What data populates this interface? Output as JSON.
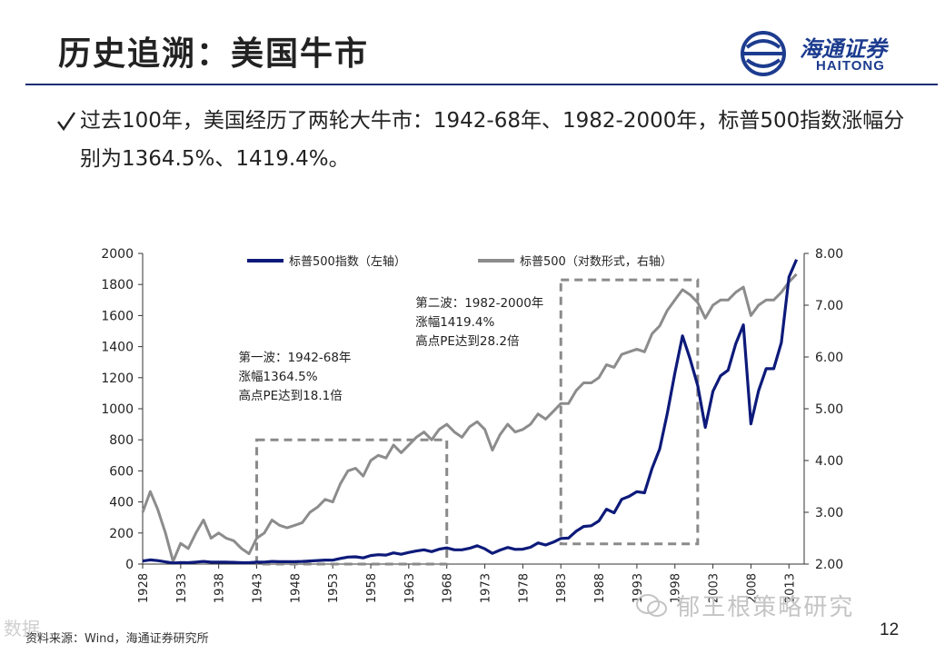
{
  "slide": {
    "title": "历史追溯：美国牛市",
    "bullet": "过去100年，美国经历了两轮大牛市：1942-68年、1982-2000年，标普500指数涨幅分别为1364.5%、1419.4%。",
    "source": "资料来源：Wind，海通证券研究所",
    "page_number": "12",
    "watermark": "郁王根策略研究",
    "watermark2": "数据",
    "logo_cn": "海通证券",
    "logo_en": "HAITONG"
  },
  "icons": {
    "bullet": "check-icon",
    "logo": "haitong-logo-icon",
    "watermark": "wechat-icon"
  },
  "colors": {
    "index_line": "#0d1a7a",
    "log_line": "#8c8c8c",
    "box": "#8a8a8a",
    "accent": "#1b2f75"
  },
  "chart_data": {
    "type": "line",
    "x_unit": "year",
    "xlim": [
      1928,
      2015
    ],
    "x_ticks": [
      "1928",
      "1933",
      "1938",
      "1943",
      "1948",
      "1953",
      "1958",
      "1963",
      "1968",
      "1973",
      "1978",
      "1983",
      "1988",
      "1993",
      "1998",
      "2003",
      "2008",
      "2013"
    ],
    "y_left": {
      "ylim": [
        0,
        2000
      ],
      "ticks": [
        "0",
        "200",
        "400",
        "600",
        "800",
        "1000",
        "1200",
        "1400",
        "1600",
        "1800",
        "2000"
      ]
    },
    "y_right": {
      "ylim": [
        2,
        8
      ],
      "ticks": [
        "2.00",
        "3.00",
        "4.00",
        "5.00",
        "6.00",
        "7.00",
        "8.00"
      ]
    },
    "grid": false,
    "legend_position": "top",
    "series": [
      {
        "name": "标普500指数（左轴）",
        "axis": "left",
        "points": [
          [
            1928,
            20
          ],
          [
            1929,
            27
          ],
          [
            1930,
            22
          ],
          [
            1931,
            14
          ],
          [
            1932,
            7
          ],
          [
            1933,
            10
          ],
          [
            1934,
            9
          ],
          [
            1935,
            13
          ],
          [
            1936,
            17
          ],
          [
            1937,
            12
          ],
          [
            1938,
            13
          ],
          [
            1939,
            12
          ],
          [
            1940,
            11
          ],
          [
            1941,
            9
          ],
          [
            1942,
            9
          ],
          [
            1943,
            12
          ],
          [
            1944,
            13
          ],
          [
            1945,
            17
          ],
          [
            1946,
            15
          ],
          [
            1947,
            15
          ],
          [
            1948,
            15
          ],
          [
            1949,
            17
          ],
          [
            1950,
            20
          ],
          [
            1951,
            23
          ],
          [
            1952,
            26
          ],
          [
            1953,
            25
          ],
          [
            1954,
            36
          ],
          [
            1955,
            45
          ],
          [
            1956,
            47
          ],
          [
            1957,
            40
          ],
          [
            1958,
            55
          ],
          [
            1959,
            60
          ],
          [
            1960,
            58
          ],
          [
            1961,
            72
          ],
          [
            1962,
            63
          ],
          [
            1963,
            75
          ],
          [
            1964,
            84
          ],
          [
            1965,
            92
          ],
          [
            1966,
            80
          ],
          [
            1967,
            96
          ],
          [
            1968,
            104
          ],
          [
            1969,
            92
          ],
          [
            1970,
            92
          ],
          [
            1971,
            102
          ],
          [
            1972,
            118
          ],
          [
            1973,
            98
          ],
          [
            1974,
            69
          ],
          [
            1975,
            90
          ],
          [
            1976,
            107
          ],
          [
            1977,
            95
          ],
          [
            1978,
            96
          ],
          [
            1979,
            108
          ],
          [
            1980,
            136
          ],
          [
            1981,
            123
          ],
          [
            1982,
            141
          ],
          [
            1983,
            165
          ],
          [
            1984,
            167
          ],
          [
            1985,
            211
          ],
          [
            1986,
            242
          ],
          [
            1987,
            247
          ],
          [
            1988,
            278
          ],
          [
            1989,
            353
          ],
          [
            1990,
            330
          ],
          [
            1991,
            417
          ],
          [
            1992,
            436
          ],
          [
            1993,
            466
          ],
          [
            1994,
            459
          ],
          [
            1995,
            616
          ],
          [
            1996,
            741
          ],
          [
            1997,
            970
          ],
          [
            1998,
            1229
          ],
          [
            1999,
            1469
          ],
          [
            2000,
            1320
          ],
          [
            2001,
            1148
          ],
          [
            2002,
            880
          ],
          [
            2003,
            1112
          ],
          [
            2004,
            1212
          ],
          [
            2005,
            1248
          ],
          [
            2006,
            1418
          ],
          [
            2007,
            1540
          ],
          [
            2008,
            903
          ],
          [
            2009,
            1115
          ],
          [
            2010,
            1258
          ],
          [
            2011,
            1258
          ],
          [
            2012,
            1426
          ],
          [
            2013,
            1848
          ],
          [
            2014,
            1960
          ]
        ]
      },
      {
        "name": "标普500（对数形式，右轴）",
        "axis": "right",
        "points": [
          [
            1928,
            3.0
          ],
          [
            1929,
            3.4
          ],
          [
            1930,
            3.05
          ],
          [
            1931,
            2.6
          ],
          [
            1932,
            2.05
          ],
          [
            1933,
            2.4
          ],
          [
            1934,
            2.3
          ],
          [
            1935,
            2.6
          ],
          [
            1936,
            2.85
          ],
          [
            1937,
            2.5
          ],
          [
            1938,
            2.6
          ],
          [
            1939,
            2.5
          ],
          [
            1940,
            2.45
          ],
          [
            1941,
            2.3
          ],
          [
            1942,
            2.2
          ],
          [
            1943,
            2.5
          ],
          [
            1944,
            2.6
          ],
          [
            1945,
            2.85
          ],
          [
            1946,
            2.75
          ],
          [
            1947,
            2.7
          ],
          [
            1948,
            2.75
          ],
          [
            1949,
            2.8
          ],
          [
            1950,
            3.0
          ],
          [
            1951,
            3.1
          ],
          [
            1952,
            3.25
          ],
          [
            1953,
            3.2
          ],
          [
            1954,
            3.55
          ],
          [
            1955,
            3.8
          ],
          [
            1956,
            3.85
          ],
          [
            1957,
            3.7
          ],
          [
            1958,
            4.0
          ],
          [
            1959,
            4.1
          ],
          [
            1960,
            4.05
          ],
          [
            1961,
            4.3
          ],
          [
            1962,
            4.15
          ],
          [
            1963,
            4.3
          ],
          [
            1964,
            4.45
          ],
          [
            1965,
            4.55
          ],
          [
            1966,
            4.4
          ],
          [
            1967,
            4.6
          ],
          [
            1968,
            4.7
          ],
          [
            1969,
            4.55
          ],
          [
            1970,
            4.45
          ],
          [
            1971,
            4.65
          ],
          [
            1972,
            4.75
          ],
          [
            1973,
            4.6
          ],
          [
            1974,
            4.2
          ],
          [
            1975,
            4.5
          ],
          [
            1976,
            4.7
          ],
          [
            1977,
            4.55
          ],
          [
            1978,
            4.6
          ],
          [
            1979,
            4.7
          ],
          [
            1980,
            4.9
          ],
          [
            1981,
            4.8
          ],
          [
            1982,
            4.95
          ],
          [
            1983,
            5.1
          ],
          [
            1984,
            5.1
          ],
          [
            1985,
            5.35
          ],
          [
            1986,
            5.5
          ],
          [
            1987,
            5.5
          ],
          [
            1988,
            5.6
          ],
          [
            1989,
            5.85
          ],
          [
            1990,
            5.8
          ],
          [
            1991,
            6.05
          ],
          [
            1992,
            6.1
          ],
          [
            1993,
            6.15
          ],
          [
            1994,
            6.1
          ],
          [
            1995,
            6.45
          ],
          [
            1996,
            6.6
          ],
          [
            1997,
            6.9
          ],
          [
            1998,
            7.1
          ],
          [
            1999,
            7.3
          ],
          [
            2000,
            7.2
          ],
          [
            2001,
            7.05
          ],
          [
            2002,
            6.75
          ],
          [
            2003,
            7.0
          ],
          [
            2004,
            7.1
          ],
          [
            2005,
            7.1
          ],
          [
            2006,
            7.25
          ],
          [
            2007,
            7.35
          ],
          [
            2008,
            6.8
          ],
          [
            2009,
            7.0
          ],
          [
            2010,
            7.1
          ],
          [
            2011,
            7.1
          ],
          [
            2012,
            7.25
          ],
          [
            2013,
            7.45
          ],
          [
            2014,
            7.6
          ]
        ]
      }
    ],
    "annotations": [
      {
        "text": [
          "第一波：1942-68年",
          "涨幅1364.5%",
          "高点PE达到18.1倍"
        ],
        "x_range": [
          1943,
          1968
        ],
        "y_range": [
          0,
          800
        ],
        "axis": "left"
      },
      {
        "text": [
          "第二波：1982-2000年",
          "涨幅1419.4%",
          "高点PE达到28.2倍"
        ],
        "x_range": [
          1983,
          2001
        ],
        "y_range": [
          130,
          1830
        ],
        "axis": "left"
      }
    ]
  }
}
